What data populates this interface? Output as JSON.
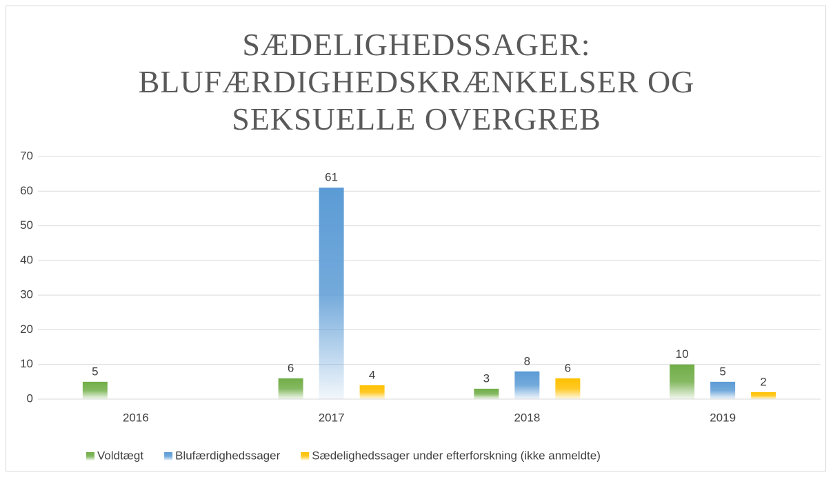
{
  "chart_data": {
    "type": "bar",
    "title": "SÆDELIGHEDSSAGER: BLUFÆRDIGHEDSKRÆNKELSER OG SEKSUELLE OVERGREB",
    "categories": [
      "2016",
      "2017",
      "2018",
      "2019"
    ],
    "series": [
      {
        "name": "Voldtægt",
        "color": "#70ad47",
        "values": [
          5,
          6,
          3,
          10
        ]
      },
      {
        "name": "Blufærdighedssager",
        "color": "#5b9bd5",
        "values": [
          null,
          61,
          8,
          5
        ]
      },
      {
        "name": "Sædelighedssager under efterforskning (ikke anmeldte)",
        "color": "#ffc000",
        "values": [
          null,
          4,
          6,
          2
        ]
      }
    ],
    "ylim": [
      0,
      70
    ],
    "yticks": [
      0,
      10,
      20,
      30,
      40,
      50,
      60,
      70
    ],
    "grid": true,
    "legend": "bottom"
  }
}
